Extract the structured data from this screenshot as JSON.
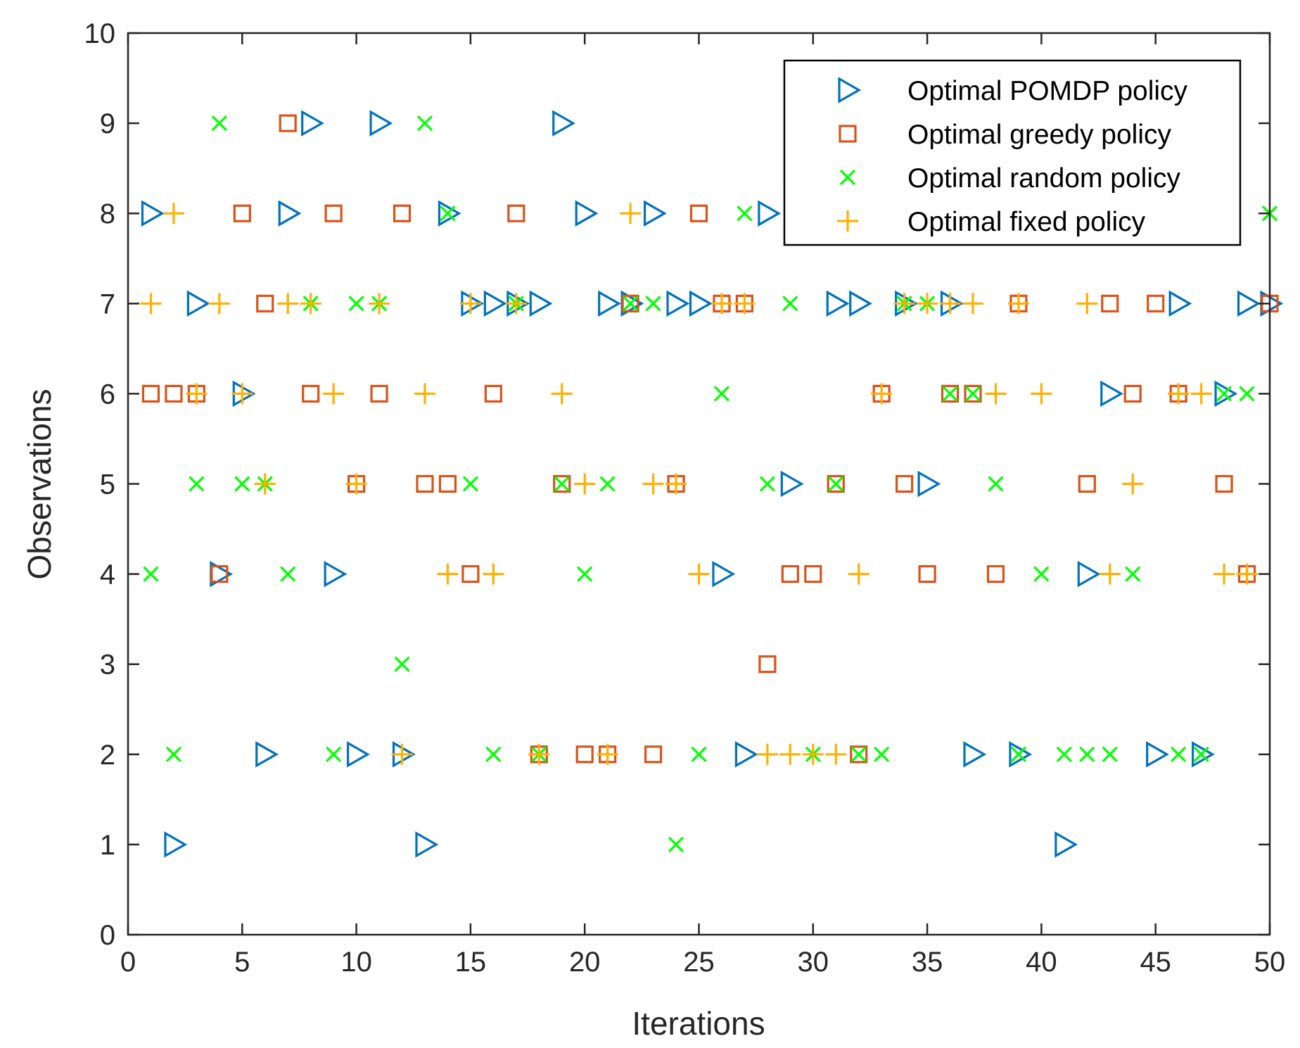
{
  "chart_data": {
    "type": "scatter",
    "title": "",
    "xlabel": "Iterations",
    "ylabel": "Observations",
    "xlim": [
      0,
      50
    ],
    "ylim": [
      0,
      10
    ],
    "xticks": [
      "0",
      "5",
      "10",
      "15",
      "20",
      "25",
      "30",
      "35",
      "40",
      "45",
      "50"
    ],
    "yticks": [
      "0",
      "1",
      "2",
      "3",
      "4",
      "5",
      "6",
      "7",
      "8",
      "9",
      "10"
    ],
    "grid": false,
    "legend_position": "top-right",
    "series": [
      {
        "name": "Optimal POMDP policy",
        "marker": "triangle-right",
        "color": "#0072BD",
        "points": [
          [
            1,
            8
          ],
          [
            2,
            1
          ],
          [
            3,
            7
          ],
          [
            4,
            4
          ],
          [
            5,
            6
          ],
          [
            6,
            2
          ],
          [
            7,
            8
          ],
          [
            8,
            9
          ],
          [
            9,
            4
          ],
          [
            10,
            2
          ],
          [
            11,
            9
          ],
          [
            12,
            2
          ],
          [
            13,
            1
          ],
          [
            14,
            8
          ],
          [
            15,
            7
          ],
          [
            16,
            7
          ],
          [
            17,
            7
          ],
          [
            18,
            7
          ],
          [
            19,
            9
          ],
          [
            20,
            8
          ],
          [
            21,
            7
          ],
          [
            22,
            7
          ],
          [
            23,
            8
          ],
          [
            24,
            7
          ],
          [
            25,
            7
          ],
          [
            26,
            4
          ],
          [
            27,
            2
          ],
          [
            28,
            8
          ],
          [
            29,
            5
          ],
          [
            31,
            7
          ],
          [
            32,
            7
          ],
          [
            34,
            7
          ],
          [
            35,
            5
          ],
          [
            36,
            7
          ],
          [
            37,
            2
          ],
          [
            39,
            2
          ],
          [
            41,
            1
          ],
          [
            42,
            4
          ],
          [
            43,
            6
          ],
          [
            45,
            2
          ],
          [
            46,
            7
          ],
          [
            47,
            2
          ],
          [
            48,
            6
          ],
          [
            49,
            7
          ],
          [
            50,
            7
          ]
        ]
      },
      {
        "name": "Optimal greedy policy",
        "marker": "square",
        "color": "#D95319",
        "points": [
          [
            1,
            6
          ],
          [
            2,
            6
          ],
          [
            3,
            6
          ],
          [
            4,
            4
          ],
          [
            5,
            8
          ],
          [
            6,
            7
          ],
          [
            7,
            9
          ],
          [
            8,
            6
          ],
          [
            9,
            8
          ],
          [
            10,
            5
          ],
          [
            11,
            6
          ],
          [
            12,
            8
          ],
          [
            13,
            5
          ],
          [
            14,
            5
          ],
          [
            15,
            4
          ],
          [
            16,
            6
          ],
          [
            17,
            8
          ],
          [
            18,
            2
          ],
          [
            19,
            5
          ],
          [
            20,
            2
          ],
          [
            21,
            2
          ],
          [
            22,
            7
          ],
          [
            23,
            2
          ],
          [
            24,
            5
          ],
          [
            25,
            8
          ],
          [
            26,
            7
          ],
          [
            27,
            7
          ],
          [
            28,
            3
          ],
          [
            29,
            4
          ],
          [
            30,
            4
          ],
          [
            31,
            5
          ],
          [
            32,
            2
          ],
          [
            33,
            6
          ],
          [
            34,
            5
          ],
          [
            35,
            4
          ],
          [
            36,
            6
          ],
          [
            37,
            6
          ],
          [
            38,
            4
          ],
          [
            39,
            7
          ],
          [
            42,
            5
          ],
          [
            43,
            7
          ],
          [
            44,
            6
          ],
          [
            45,
            7
          ],
          [
            46,
            6
          ],
          [
            48,
            5
          ],
          [
            49,
            4
          ],
          [
            50,
            7
          ]
        ]
      },
      {
        "name": "Optimal random policy",
        "marker": "x",
        "color": "#00FF00",
        "points": [
          [
            1,
            4
          ],
          [
            2,
            2
          ],
          [
            3,
            5
          ],
          [
            4,
            9
          ],
          [
            5,
            5
          ],
          [
            6,
            5
          ],
          [
            7,
            4
          ],
          [
            8,
            7
          ],
          [
            9,
            2
          ],
          [
            10,
            7
          ],
          [
            11,
            7
          ],
          [
            12,
            3
          ],
          [
            13,
            9
          ],
          [
            14,
            8
          ],
          [
            15,
            5
          ],
          [
            16,
            2
          ],
          [
            17,
            7
          ],
          [
            18,
            2
          ],
          [
            19,
            5
          ],
          [
            20,
            4
          ],
          [
            21,
            5
          ],
          [
            22,
            7
          ],
          [
            23,
            7
          ],
          [
            24,
            1
          ],
          [
            25,
            2
          ],
          [
            26,
            6
          ],
          [
            27,
            8
          ],
          [
            28,
            5
          ],
          [
            29,
            7
          ],
          [
            30,
            2
          ],
          [
            31,
            5
          ],
          [
            32,
            2
          ],
          [
            33,
            2
          ],
          [
            34,
            7
          ],
          [
            35,
            7
          ],
          [
            36,
            6
          ],
          [
            37,
            6
          ],
          [
            38,
            5
          ],
          [
            39,
            2
          ],
          [
            40,
            4
          ],
          [
            41,
            2
          ],
          [
            42,
            2
          ],
          [
            43,
            2
          ],
          [
            44,
            4
          ],
          [
            46,
            2
          ],
          [
            47,
            2
          ],
          [
            48,
            6
          ],
          [
            49,
            6
          ],
          [
            50,
            8
          ]
        ]
      },
      {
        "name": "Optimal fixed policy",
        "marker": "plus",
        "color": "#FFB000",
        "points": [
          [
            1,
            7
          ],
          [
            2,
            8
          ],
          [
            3,
            6
          ],
          [
            4,
            7
          ],
          [
            5,
            6
          ],
          [
            6,
            5
          ],
          [
            7,
            7
          ],
          [
            8,
            7
          ],
          [
            9,
            6
          ],
          [
            10,
            5
          ],
          [
            11,
            7
          ],
          [
            12,
            2
          ],
          [
            13,
            6
          ],
          [
            14,
            4
          ],
          [
            15,
            7
          ],
          [
            16,
            4
          ],
          [
            17,
            7
          ],
          [
            18,
            2
          ],
          [
            19,
            6
          ],
          [
            20,
            5
          ],
          [
            21,
            2
          ],
          [
            22,
            8
          ],
          [
            23,
            5
          ],
          [
            24,
            5
          ],
          [
            25,
            4
          ],
          [
            26,
            7
          ],
          [
            27,
            7
          ],
          [
            28,
            2
          ],
          [
            29,
            2
          ],
          [
            30,
            2
          ],
          [
            31,
            2
          ],
          [
            32,
            4
          ],
          [
            33,
            6
          ],
          [
            34,
            7
          ],
          [
            35,
            7
          ],
          [
            36,
            7
          ],
          [
            37,
            7
          ],
          [
            38,
            6
          ],
          [
            39,
            7
          ],
          [
            40,
            6
          ],
          [
            42,
            7
          ],
          [
            43,
            4
          ],
          [
            44,
            5
          ],
          [
            46,
            6
          ],
          [
            47,
            6
          ],
          [
            48,
            4
          ],
          [
            49,
            4
          ]
        ]
      }
    ]
  }
}
